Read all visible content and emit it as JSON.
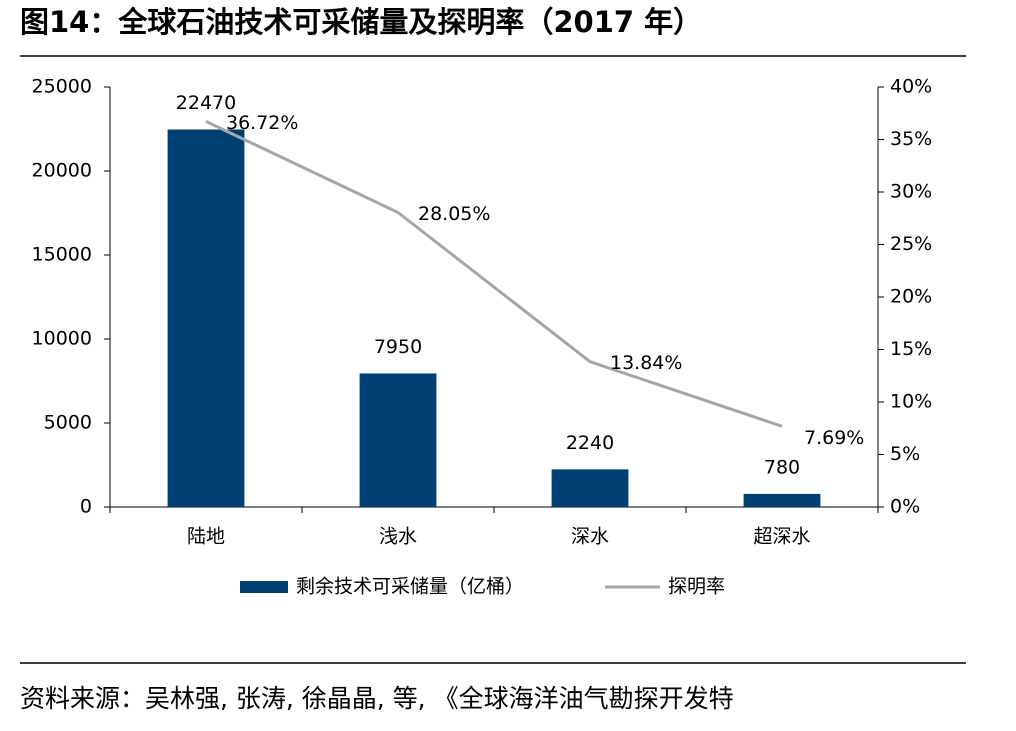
{
  "chart_data": {
    "type": "bar",
    "title": "图14：全球石油技术可采储量及探明率（2017 年）",
    "categories": [
      "陆地",
      "浅水",
      "深水",
      "超深水"
    ],
    "series": [
      {
        "name": "剩余技术可采储量（亿桶）",
        "color": "#003f72",
        "values": [
          22470,
          7950,
          2240,
          780
        ]
      },
      {
        "name": "探明率",
        "type": "line",
        "axis": "y2",
        "color": "#a6a6a6",
        "values": [
          36.72,
          28.05,
          13.84,
          7.69
        ],
        "value_labels": [
          "36.72%",
          "28.05%",
          "13.84%",
          "7.69%"
        ]
      }
    ],
    "ylim": [
      0,
      25000
    ],
    "yticks": [
      0,
      5000,
      10000,
      15000,
      20000,
      25000
    ],
    "y2lim": [
      0,
      40
    ],
    "y2ticks": [
      {
        "value": 0,
        "label": "0%"
      },
      {
        "value": 5,
        "label": "5%"
      },
      {
        "value": 10,
        "label": "10%"
      },
      {
        "value": 15,
        "label": "15%"
      },
      {
        "value": 20,
        "label": "20%"
      },
      {
        "value": 25,
        "label": "25%"
      },
      {
        "value": 30,
        "label": "30%"
      },
      {
        "value": 35,
        "label": "35%"
      },
      {
        "value": 40,
        "label": "40%"
      }
    ]
  },
  "source": "资料来源：吴林强, 张涛, 徐晶晶, 等, 《全球海洋油气勘探开发特"
}
